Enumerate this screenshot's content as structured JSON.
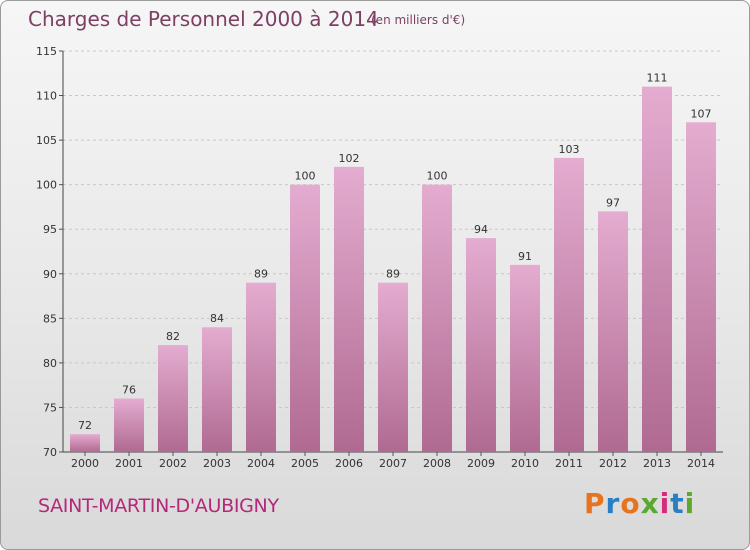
{
  "title": "Charges de Personnel 2000 à 2014",
  "subtitle": "(en milliers d'€)",
  "place": "SAINT-MARTIN-D'AUBIGNY",
  "logo": {
    "text": "Proxiti",
    "colors": [
      "#e8731f",
      "#2a7fc4",
      "#e8731f",
      "#5aa82e",
      "#d9297a",
      "#2a7fc4",
      "#5aa82e"
    ]
  },
  "chart_data": {
    "type": "bar",
    "categories": [
      "2000",
      "2001",
      "2002",
      "2003",
      "2004",
      "2005",
      "2006",
      "2007",
      "2008",
      "2009",
      "2010",
      "2011",
      "2012",
      "2013",
      "2014"
    ],
    "values": [
      72,
      76,
      82,
      84,
      89,
      100,
      102,
      89,
      100,
      94,
      91,
      103,
      97,
      111,
      107
    ],
    "ylim": [
      70,
      115
    ],
    "yticks": [
      70,
      75,
      80,
      85,
      90,
      95,
      100,
      105,
      110,
      115
    ],
    "grid": "horizontal",
    "bar_color": "#c8709f",
    "title": "Charges de Personnel 2000 à 2014",
    "xlabel": "",
    "ylabel": ""
  }
}
